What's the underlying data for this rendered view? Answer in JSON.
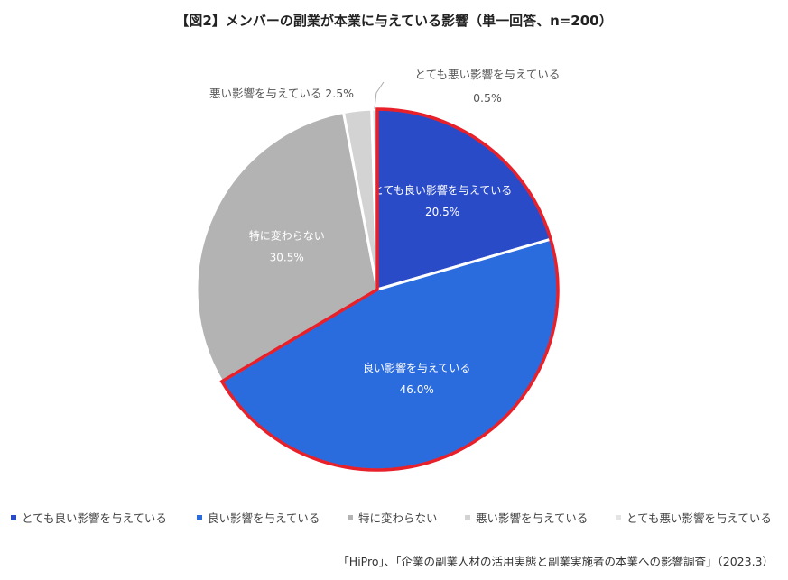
{
  "title": "【図2】メンバーの副業が本業に与えている影響（単一回答、n=200）",
  "chart_data": {
    "type": "pie",
    "title": "【図2】メンバーの副業が本業に与えている影響（単一回答、n=200）",
    "slices": [
      {
        "label": "とても良い影響を与えている",
        "value": 20.5,
        "value_label": "20.5%",
        "color": "#2a4bc8",
        "label_inside": true,
        "highlighted": true
      },
      {
        "label": "良い影響を与えている",
        "value": 46.0,
        "value_label": "46.0%",
        "color": "#2a6bde",
        "label_inside": true,
        "highlighted": true
      },
      {
        "label": "特に変わらない",
        "value": 30.5,
        "value_label": "30.5%",
        "color": "#b3b3b3",
        "label_inside": true,
        "highlighted": false
      },
      {
        "label": "悪い影響を与えている",
        "value": 2.5,
        "value_label": "2.5%",
        "color": "#d3d3d3",
        "label_inside": false,
        "highlighted": false
      },
      {
        "label": "とても悪い影響を与えている",
        "value": 0.5,
        "value_label": "0.5%",
        "color": "#e4e4e4",
        "label_inside": false,
        "highlighted": false
      }
    ],
    "start_angle_deg": 0,
    "direction": "clockwise",
    "highlight_color": "#e8202a",
    "legend_position": "bottom"
  },
  "outside_labels": {
    "bad": "悪い影響を与えている 2.5%",
    "very_bad_label": "とても悪い影響を与えている",
    "very_bad_value": "0.5%"
  },
  "legend": [
    {
      "label": "とても良い影響を与えている",
      "color": "#2a4bc8"
    },
    {
      "label": "良い影響を与えている",
      "color": "#2a6bde"
    },
    {
      "label": "特に変わらない",
      "color": "#b3b3b3"
    },
    {
      "label": "悪い影響を与えている",
      "color": "#d3d3d3"
    },
    {
      "label": "とても悪い影響を与えている",
      "color": "#e4e4e4"
    }
  ],
  "source": "「HiPro」、「企業の副業人材の活用実態と副業実施者の本業への影響調査」（2023.3）"
}
